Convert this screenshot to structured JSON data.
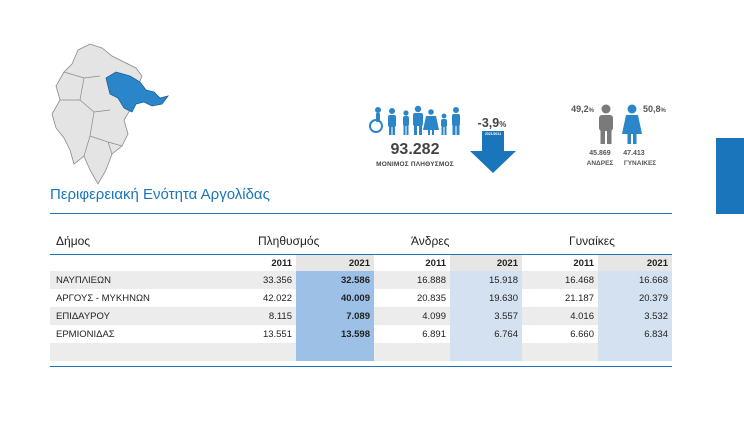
{
  "infographic": {
    "population_total": "93.282",
    "population_label": "ΜΟΝΙΜΟΣ ΠΛΗΘΥΣΜΟΣ",
    "change_value": "-3,9",
    "change_unit": "%",
    "arrow_caption": "2021/2011",
    "male_pct": "49,2",
    "female_pct": "50,8",
    "pct_unit": "%",
    "male_count": "45.869",
    "female_count": "47.413",
    "male_label": "ΑΝΔΡΕΣ",
    "female_label": "ΓΥΝΑΙΚΕΣ",
    "colors": {
      "accent": "#1b75bb",
      "icon_blue": "#2b86c9",
      "icon_gray": "#7a7a7a"
    }
  },
  "region_title": "Περιφερειακή Ενότητα Αργολίδας",
  "table": {
    "headers": {
      "municipality": "Δήμος",
      "population": "Πληθυσμός",
      "men": "Άνδρες",
      "women": "Γυναίκες"
    },
    "years": [
      "2011",
      "2021",
      "2011",
      "2021",
      "2011",
      "2021"
    ],
    "rows": [
      {
        "name": "ΝΑΥΠΛΙΕΩΝ",
        "pop_2011": "33.356",
        "pop_2021": "32.586",
        "men_2011": "16.888",
        "men_2021": "15.918",
        "women_2011": "16.468",
        "women_2021": "16.668"
      },
      {
        "name": "ΑΡΓΟΥΣ - ΜΥΚΗΝΩΝ",
        "pop_2011": "42.022",
        "pop_2021": "40.009",
        "men_2011": "20.835",
        "men_2021": "19.630",
        "women_2011": "21.187",
        "women_2021": "20.379"
      },
      {
        "name": "ΕΠΙΔΑΥΡΟΥ",
        "pop_2011": "8.115",
        "pop_2021": "7.089",
        "men_2011": "4.099",
        "men_2021": "3.557",
        "women_2011": "4.016",
        "women_2021": "3.532"
      },
      {
        "name": "ΕΡΜΙΟΝΙΔΑΣ",
        "pop_2011": "13.551",
        "pop_2021": "13.598",
        "men_2011": "6.891",
        "men_2021": "6.764",
        "women_2011": "6.660",
        "women_2021": "6.834"
      }
    ]
  }
}
